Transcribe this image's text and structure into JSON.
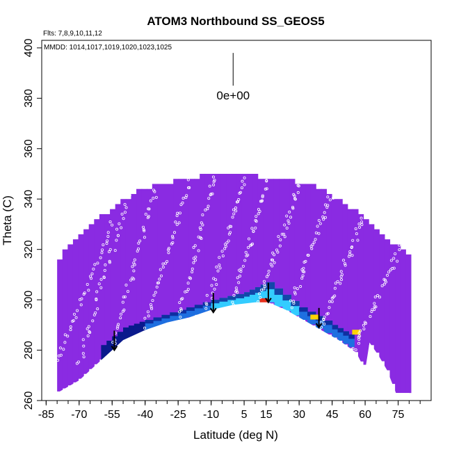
{
  "chart_data": {
    "type": "heatmap",
    "title": "ATOM3 Northbound SS_GEOS5",
    "annotations": {
      "flights": "Flts: 7,8,9,10,11,12",
      "dates": "MMDD: 1014,1017,1019,1020,1023,1025",
      "scale_label": "0e+00"
    },
    "xlabel": "Latitude (deg N)",
    "ylabel": "Theta (C)",
    "xlim": [
      -87,
      90
    ],
    "ylim": [
      260,
      403
    ],
    "x_ticks": [
      -85,
      -70,
      -55,
      -40,
      -25,
      -10,
      5,
      15,
      30,
      45,
      60,
      75
    ],
    "y_ticks": [
      260,
      280,
      300,
      320,
      340,
      360,
      380,
      400
    ],
    "grid": false,
    "colors": {
      "background_field": "#8a2be2",
      "low": "#0a1a8c",
      "mid": "#1e6fe0",
      "high": "#33ccff",
      "hot": "#e8301c",
      "warm": "#ffd400",
      "points": "#ffffff",
      "arrows": "#000000"
    },
    "field_top_boundary": [
      {
        "lat": -82,
        "theta": 308
      },
      {
        "lat": -78,
        "theta": 318
      },
      {
        "lat": -72,
        "theta": 324
      },
      {
        "lat": -66,
        "theta": 328
      },
      {
        "lat": -60,
        "theta": 333
      },
      {
        "lat": -52,
        "theta": 338
      },
      {
        "lat": -44,
        "theta": 343
      },
      {
        "lat": -34,
        "theta": 346
      },
      {
        "lat": -22,
        "theta": 348
      },
      {
        "lat": -10,
        "theta": 350
      },
      {
        "lat": 0,
        "theta": 350
      },
      {
        "lat": 10,
        "theta": 349
      },
      {
        "lat": 22,
        "theta": 348
      },
      {
        "lat": 34,
        "theta": 346
      },
      {
        "lat": 44,
        "theta": 342
      },
      {
        "lat": 54,
        "theta": 336
      },
      {
        "lat": 64,
        "theta": 330
      },
      {
        "lat": 72,
        "theta": 323
      },
      {
        "lat": 80,
        "theta": 318
      }
    ],
    "field_bottom_boundary": [
      {
        "lat": -80,
        "theta": 263
      },
      {
        "lat": -70,
        "theta": 268
      },
      {
        "lat": -60,
        "theta": 276
      },
      {
        "lat": -50,
        "theta": 284
      },
      {
        "lat": -40,
        "theta": 288
      },
      {
        "lat": -30,
        "theta": 291
      },
      {
        "lat": -20,
        "theta": 293
      },
      {
        "lat": -10,
        "theta": 296
      },
      {
        "lat": 0,
        "theta": 298
      },
      {
        "lat": 10,
        "theta": 299
      },
      {
        "lat": 16,
        "theta": 299
      },
      {
        "lat": 24,
        "theta": 296
      },
      {
        "lat": 32,
        "theta": 292
      },
      {
        "lat": 40,
        "theta": 288
      },
      {
        "lat": 48,
        "theta": 284
      },
      {
        "lat": 56,
        "theta": 279
      },
      {
        "lat": 60,
        "theta": 272
      },
      {
        "lat": 62,
        "theta": 283
      },
      {
        "lat": 66,
        "theta": 278
      },
      {
        "lat": 70,
        "theta": 272
      },
      {
        "lat": 74,
        "theta": 263
      },
      {
        "lat": 80,
        "theta": 263
      }
    ],
    "high_band": [
      {
        "lat": -60,
        "theta_top": 282,
        "theta_bot": 276,
        "level": "low"
      },
      {
        "lat": -50,
        "theta_top": 289,
        "theta_bot": 284,
        "level": "low"
      },
      {
        "lat": -40,
        "theta_top": 292,
        "theta_bot": 288,
        "level": "mid"
      },
      {
        "lat": -25,
        "theta_top": 296,
        "theta_bot": 292,
        "level": "mid"
      },
      {
        "lat": -10,
        "theta_top": 300,
        "theta_bot": 296,
        "level": "high"
      },
      {
        "lat": 5,
        "theta_top": 303,
        "theta_bot": 298,
        "level": "high"
      },
      {
        "lat": 15,
        "theta_top": 307,
        "theta_bot": 299,
        "level": "high"
      },
      {
        "lat": 30,
        "theta_top": 297,
        "theta_bot": 292,
        "level": "mid"
      },
      {
        "lat": 45,
        "theta_top": 290,
        "theta_bot": 285,
        "level": "mid"
      },
      {
        "lat": 55,
        "theta_top": 285,
        "theta_bot": 280,
        "level": "low"
      }
    ],
    "hotspots": [
      {
        "lat": 14,
        "theta": 299.5,
        "level": "hot"
      },
      {
        "lat": 37,
        "theta": 293,
        "level": "warm"
      },
      {
        "lat": 56,
        "theta": 287,
        "level": "warm"
      }
    ],
    "arrows": [
      {
        "lat": -54,
        "theta_from": 285,
        "theta_to": 280
      },
      {
        "lat": -9,
        "theta_from": 300,
        "theta_to": 295
      },
      {
        "lat": 16,
        "theta_from": 304,
        "theta_to": 299
      },
      {
        "lat": 39,
        "theta_from": 294,
        "theta_to": 289
      }
    ],
    "flight_tracks": [
      {
        "lat_start": -83,
        "lat_end": -55,
        "theta_start": 270,
        "theta_end": 330
      },
      {
        "lat_start": -70,
        "lat_end": -48,
        "theta_start": 275,
        "theta_end": 340
      },
      {
        "lat_start": -55,
        "lat_end": -35,
        "theta_start": 282,
        "theta_end": 345
      },
      {
        "lat_start": -40,
        "lat_end": -20,
        "theta_start": 290,
        "theta_end": 347
      },
      {
        "lat_start": -25,
        "lat_end": -8,
        "theta_start": 293,
        "theta_end": 350
      },
      {
        "lat_start": -12,
        "lat_end": 5,
        "theta_start": 297,
        "theta_end": 348
      },
      {
        "lat_start": 0,
        "lat_end": 15,
        "theta_start": 299,
        "theta_end": 347
      },
      {
        "lat_start": 12,
        "lat_end": 30,
        "theta_start": 300,
        "theta_end": 345
      },
      {
        "lat_start": 25,
        "lat_end": 45,
        "theta_start": 295,
        "theta_end": 343
      },
      {
        "lat_start": 40,
        "lat_end": 60,
        "theta_start": 288,
        "theta_end": 335
      },
      {
        "lat_start": 55,
        "lat_end": 78,
        "theta_start": 280,
        "theta_end": 325
      }
    ],
    "scale_bar": {
      "lat": 0,
      "theta_top": 398,
      "theta_bottom": 385
    }
  }
}
